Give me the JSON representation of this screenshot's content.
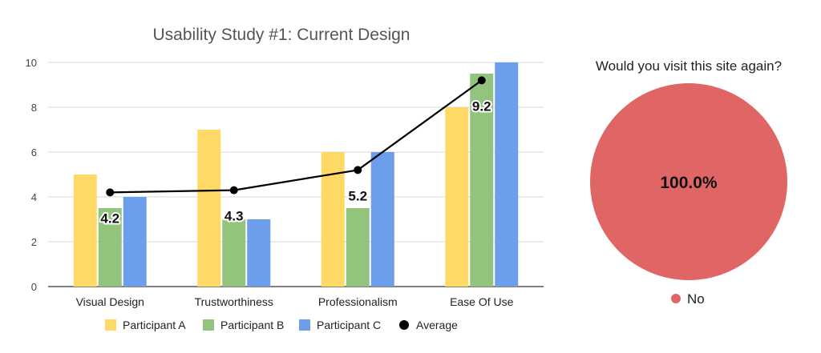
{
  "chart_data": [
    {
      "type": "bar",
      "title": "Usability Study #1: Current Design",
      "xlabel": "",
      "ylabel": "",
      "ylim": [
        0,
        10
      ],
      "yticks": [
        0,
        2,
        4,
        6,
        8,
        10
      ],
      "grid": true,
      "legend_position": "bottom",
      "categories": [
        "Visual Design",
        "Trustworthiness",
        "Professionalism",
        "Ease Of Use"
      ],
      "series": [
        {
          "name": "Participant A",
          "type": "bar",
          "color": "#FFD966",
          "values": [
            5,
            7,
            6,
            8
          ]
        },
        {
          "name": "Participant B",
          "type": "bar",
          "color": "#93C47D",
          "values": [
            3.5,
            3,
            3.5,
            9.5
          ]
        },
        {
          "name": "Participant C",
          "type": "bar",
          "color": "#6D9EEB",
          "values": [
            4,
            3,
            6,
            10
          ]
        },
        {
          "name": "Average",
          "type": "line",
          "color": "#000000",
          "values": [
            4.2,
            4.3,
            5.2,
            9.2
          ],
          "labels": [
            "4.2",
            "4.3",
            "5.2",
            "9.2"
          ]
        }
      ]
    },
    {
      "type": "pie",
      "title": "Would you visit this site again?",
      "legend_position": "bottom",
      "slices": [
        {
          "label": "No",
          "value": 100,
          "color": "#E06666",
          "value_label": "100.0%"
        }
      ]
    }
  ]
}
